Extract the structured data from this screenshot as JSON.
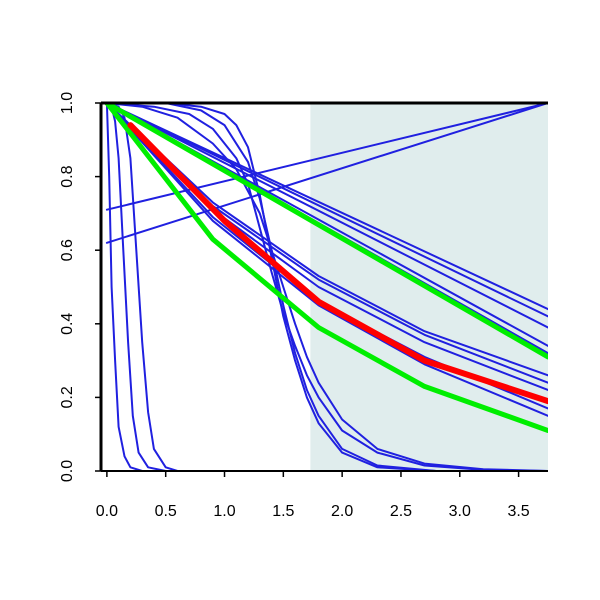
{
  "chart_data": {
    "type": "line",
    "title": "",
    "xlabel": "",
    "ylabel": "",
    "xlim": [
      -0.05,
      3.75
    ],
    "ylim": [
      0.0,
      1.0
    ],
    "x_ticks": [
      0.0,
      0.5,
      1.0,
      1.5,
      2.0,
      2.5,
      3.0,
      3.5
    ],
    "x_tick_labels": [
      "0.0",
      "0.5",
      "1.0",
      "1.5",
      "2.0",
      "2.5",
      "3.0",
      "3.5"
    ],
    "y_ticks": [
      0.0,
      0.2,
      0.4,
      0.6,
      0.8,
      1.0
    ],
    "y_tick_labels": [
      "0.0",
      "0.2",
      "0.4",
      "0.6",
      "0.8",
      "1.0"
    ],
    "grid": false,
    "shaded_region": {
      "x_from": 1.73,
      "x_to": 3.75,
      "color": "#e0eded"
    },
    "series": [
      {
        "color": "#2020e0",
        "width": 2,
        "points": [
          [
            0.0,
            1.0
          ],
          [
            0.02,
            0.8
          ],
          [
            0.04,
            0.5
          ],
          [
            0.07,
            0.3
          ],
          [
            0.1,
            0.12
          ],
          [
            0.15,
            0.04
          ],
          [
            0.2,
            0.01
          ],
          [
            0.3,
            0.0
          ],
          [
            3.75,
            0.0
          ]
        ]
      },
      {
        "color": "#2020e0",
        "width": 2,
        "points": [
          [
            0.0,
            1.0
          ],
          [
            0.04,
            0.99
          ],
          [
            0.07,
            0.95
          ],
          [
            0.1,
            0.85
          ],
          [
            0.14,
            0.6
          ],
          [
            0.18,
            0.35
          ],
          [
            0.22,
            0.15
          ],
          [
            0.27,
            0.05
          ],
          [
            0.35,
            0.01
          ],
          [
            0.5,
            0.0
          ],
          [
            3.75,
            0.0
          ]
        ]
      },
      {
        "color": "#2020e0",
        "width": 2,
        "points": [
          [
            0.0,
            1.0
          ],
          [
            0.1,
            0.99
          ],
          [
            0.15,
            0.96
          ],
          [
            0.2,
            0.85
          ],
          [
            0.25,
            0.6
          ],
          [
            0.3,
            0.35
          ],
          [
            0.35,
            0.16
          ],
          [
            0.4,
            0.06
          ],
          [
            0.5,
            0.01
          ],
          [
            0.6,
            0.0
          ],
          [
            3.75,
            0.0
          ]
        ]
      },
      {
        "color": "#2020e0",
        "width": 2,
        "points": [
          [
            0.0,
            1.0
          ],
          [
            0.5,
            1.0
          ],
          [
            0.8,
            0.99
          ],
          [
            1.0,
            0.97
          ],
          [
            1.1,
            0.94
          ],
          [
            1.2,
            0.88
          ],
          [
            1.3,
            0.75
          ],
          [
            1.4,
            0.58
          ],
          [
            1.5,
            0.42
          ],
          [
            1.6,
            0.3
          ],
          [
            1.7,
            0.2
          ],
          [
            1.8,
            0.13
          ],
          [
            2.0,
            0.05
          ],
          [
            2.3,
            0.01
          ],
          [
            2.8,
            0.0
          ],
          [
            3.75,
            0.0
          ]
        ]
      },
      {
        "color": "#2020e0",
        "width": 2,
        "points": [
          [
            0.0,
            1.0
          ],
          [
            0.5,
            1.0
          ],
          [
            0.8,
            0.98
          ],
          [
            1.0,
            0.94
          ],
          [
            1.2,
            0.84
          ],
          [
            1.3,
            0.74
          ],
          [
            1.4,
            0.6
          ],
          [
            1.5,
            0.45
          ],
          [
            1.6,
            0.32
          ],
          [
            1.7,
            0.22
          ],
          [
            1.8,
            0.15
          ],
          [
            2.0,
            0.06
          ],
          [
            2.3,
            0.015
          ],
          [
            2.8,
            0.0
          ],
          [
            3.75,
            0.0
          ]
        ]
      },
      {
        "color": "#2020e0",
        "width": 2,
        "points": [
          [
            0.0,
            1.0
          ],
          [
            0.4,
            0.99
          ],
          [
            0.7,
            0.97
          ],
          [
            0.9,
            0.93
          ],
          [
            1.1,
            0.85
          ],
          [
            1.2,
            0.78
          ],
          [
            1.3,
            0.66
          ],
          [
            1.4,
            0.54
          ],
          [
            1.5,
            0.43
          ],
          [
            1.6,
            0.34
          ],
          [
            1.7,
            0.26
          ],
          [
            1.8,
            0.2
          ],
          [
            2.0,
            0.11
          ],
          [
            2.3,
            0.05
          ],
          [
            2.7,
            0.015
          ],
          [
            3.2,
            0.003
          ],
          [
            3.75,
            0.0
          ]
        ]
      },
      {
        "color": "#2020e0",
        "width": 2,
        "points": [
          [
            0.0,
            1.0
          ],
          [
            0.3,
            0.99
          ],
          [
            0.6,
            0.96
          ],
          [
            0.9,
            0.89
          ],
          [
            1.1,
            0.82
          ],
          [
            1.3,
            0.7
          ],
          [
            1.4,
            0.6
          ],
          [
            1.5,
            0.5
          ],
          [
            1.6,
            0.4
          ],
          [
            1.7,
            0.31
          ],
          [
            1.8,
            0.24
          ],
          [
            2.0,
            0.14
          ],
          [
            2.3,
            0.06
          ],
          [
            2.7,
            0.02
          ],
          [
            3.2,
            0.005
          ],
          [
            3.75,
            0.0
          ]
        ]
      },
      {
        "color": "#2020e0",
        "width": 2,
        "points": [
          [
            0.0,
            0.71
          ],
          [
            3.75,
            1.0
          ]
        ]
      },
      {
        "color": "#2020e0",
        "width": 2,
        "points": [
          [
            0.0,
            0.62
          ],
          [
            3.75,
            1.0
          ]
        ]
      },
      {
        "color": "#2020e0",
        "width": 2,
        "points": [
          [
            0.0,
            1.0
          ],
          [
            3.75,
            0.44
          ]
        ]
      },
      {
        "color": "#2020e0",
        "width": 2,
        "points": [
          [
            0.0,
            1.0
          ],
          [
            3.75,
            0.42
          ]
        ]
      },
      {
        "color": "#2020e0",
        "width": 2,
        "points": [
          [
            0.0,
            1.0
          ],
          [
            3.75,
            0.39
          ]
        ]
      },
      {
        "color": "#2020e0",
        "width": 2,
        "points": [
          [
            0.0,
            1.0
          ],
          [
            3.75,
            0.34
          ]
        ]
      },
      {
        "color": "#2020e0",
        "width": 2,
        "points": [
          [
            0.0,
            1.0
          ],
          [
            3.75,
            0.32
          ]
        ]
      },
      {
        "color": "#2020e0",
        "width": 2,
        "points": [
          [
            0.0,
            1.0
          ],
          [
            0.9,
            0.73
          ],
          [
            1.8,
            0.53
          ],
          [
            2.7,
            0.38
          ],
          [
            3.75,
            0.26
          ]
        ]
      },
      {
        "color": "#2020e0",
        "width": 2,
        "points": [
          [
            0.0,
            1.0
          ],
          [
            0.9,
            0.72
          ],
          [
            1.8,
            0.52
          ],
          [
            2.7,
            0.37
          ],
          [
            3.75,
            0.24
          ]
        ]
      },
      {
        "color": "#2020e0",
        "width": 2,
        "points": [
          [
            0.0,
            1.0
          ],
          [
            0.9,
            0.71
          ],
          [
            1.8,
            0.5
          ],
          [
            2.7,
            0.35
          ],
          [
            3.75,
            0.22
          ]
        ]
      },
      {
        "color": "#2020e0",
        "width": 2,
        "points": [
          [
            0.0,
            1.0
          ],
          [
            0.9,
            0.69
          ],
          [
            1.8,
            0.46
          ],
          [
            2.7,
            0.31
          ],
          [
            3.75,
            0.17
          ]
        ]
      },
      {
        "color": "#2020e0",
        "width": 2,
        "points": [
          [
            0.0,
            1.0
          ],
          [
            0.9,
            0.68
          ],
          [
            1.8,
            0.45
          ],
          [
            2.7,
            0.29
          ],
          [
            3.75,
            0.15
          ]
        ]
      },
      {
        "color": "#00ee00",
        "width": 5,
        "points": [
          [
            0.0,
            1.0
          ],
          [
            3.75,
            0.31
          ]
        ]
      },
      {
        "color": "#00ee00",
        "width": 5,
        "points": [
          [
            0.0,
            1.0
          ],
          [
            0.9,
            0.63
          ],
          [
            1.8,
            0.39
          ],
          [
            2.7,
            0.23
          ],
          [
            3.75,
            0.11
          ]
        ]
      },
      {
        "color": "#ff0000",
        "width": 6,
        "points": [
          [
            0.2,
            0.94
          ],
          [
            1.0,
            0.68
          ],
          [
            1.8,
            0.46
          ],
          [
            2.7,
            0.3
          ],
          [
            3.75,
            0.19
          ]
        ]
      }
    ]
  }
}
